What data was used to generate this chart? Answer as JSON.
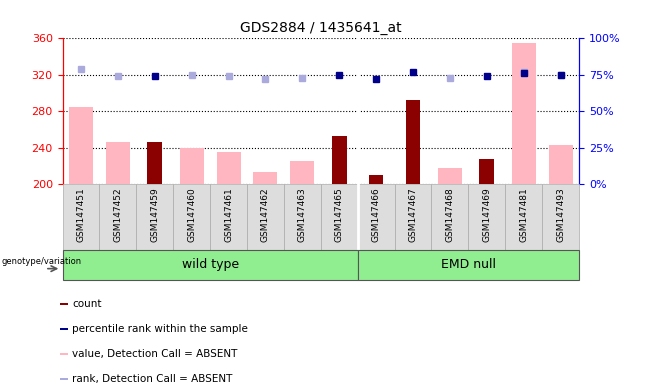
{
  "title": "GDS2884 / 1435641_at",
  "samples": [
    "GSM147451",
    "GSM147452",
    "GSM147459",
    "GSM147460",
    "GSM147461",
    "GSM147462",
    "GSM147463",
    "GSM147465",
    "GSM147466",
    "GSM147467",
    "GSM147468",
    "GSM147469",
    "GSM147481",
    "GSM147493"
  ],
  "count_dark": [
    null,
    null,
    246,
    null,
    null,
    null,
    null,
    253,
    210,
    292,
    null,
    228,
    null,
    null
  ],
  "value_absent": [
    285,
    246,
    null,
    240,
    235,
    213,
    226,
    null,
    null,
    null,
    218,
    null,
    355,
    243
  ],
  "rank_absent_y": [
    326,
    319,
    null,
    320,
    319,
    315,
    317,
    null,
    null,
    null,
    317,
    null,
    323,
    320
  ],
  "percentile_dark_y": [
    null,
    null,
    319,
    null,
    null,
    null,
    null,
    320,
    315,
    323,
    null,
    319,
    322,
    320
  ],
  "ylim_left": [
    200,
    360
  ],
  "yticks_left": [
    200,
    240,
    280,
    320,
    360
  ],
  "ylim_right": [
    0,
    100
  ],
  "yticks_right": [
    0,
    25,
    50,
    75,
    100
  ],
  "group_split": 8,
  "dark_red": "#8B0000",
  "light_pink": "#FFB6C1",
  "dark_blue": "#00008B",
  "light_blue": "#AAAADD",
  "green_fill": "#90EE90",
  "legend_items": [
    {
      "color": "#8B0000",
      "label": "count"
    },
    {
      "color": "#00008B",
      "label": "percentile rank within the sample"
    },
    {
      "color": "#FFB6C1",
      "label": "value, Detection Call = ABSENT"
    },
    {
      "color": "#AAAADD",
      "label": "rank, Detection Call = ABSENT"
    }
  ]
}
